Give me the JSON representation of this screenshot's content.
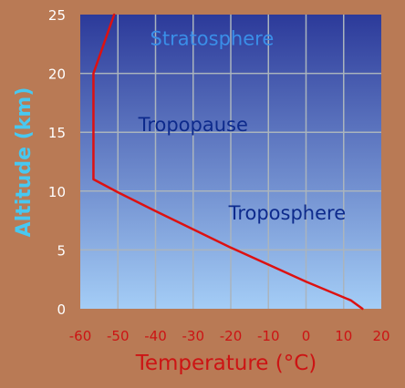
{
  "chart_data": {
    "type": "line",
    "xlabel": "Temperature (°C)",
    "ylabel": "Altitude (km)",
    "xlim": [
      -60,
      20
    ],
    "ylim": [
      0,
      25
    ],
    "x_ticks": [
      -60,
      -50,
      -40,
      -30,
      -20,
      -10,
      0,
      10,
      20
    ],
    "y_ticks": [
      0,
      5,
      10,
      15,
      20,
      25
    ],
    "grid": true,
    "series": [
      {
        "color": "#dd1111",
        "points": [
          {
            "x": 15,
            "y": 0
          },
          {
            "x": 12,
            "y": 0.7
          },
          {
            "x": 0,
            "y": 2.3
          },
          {
            "x": -20,
            "y": 5.2
          },
          {
            "x": -40,
            "y": 8.3
          },
          {
            "x": -50,
            "y": 9.9
          },
          {
            "x": -56.5,
            "y": 11
          },
          {
            "x": -56.5,
            "y": 20
          },
          {
            "x": -51,
            "y": 25
          }
        ]
      }
    ],
    "annotations": [
      {
        "text": "Stratosphere",
        "x": -25,
        "y": 22.4,
        "color": "#3a8ee8"
      },
      {
        "text": "Tropopause",
        "x": -30,
        "y": 15.1,
        "color": "#0d2a8c"
      },
      {
        "text": "Troposphere",
        "x": -5,
        "y": 7.6,
        "color": "#0d2a8c"
      }
    ],
    "colors": {
      "background": "#b97a55",
      "plot_top": "#2c3a9a",
      "plot_bottom": "#a4cdf6",
      "grid": "#aab4bd",
      "xaxis_text": "#cc1414",
      "yaxis_text": "#48c8f0"
    }
  }
}
